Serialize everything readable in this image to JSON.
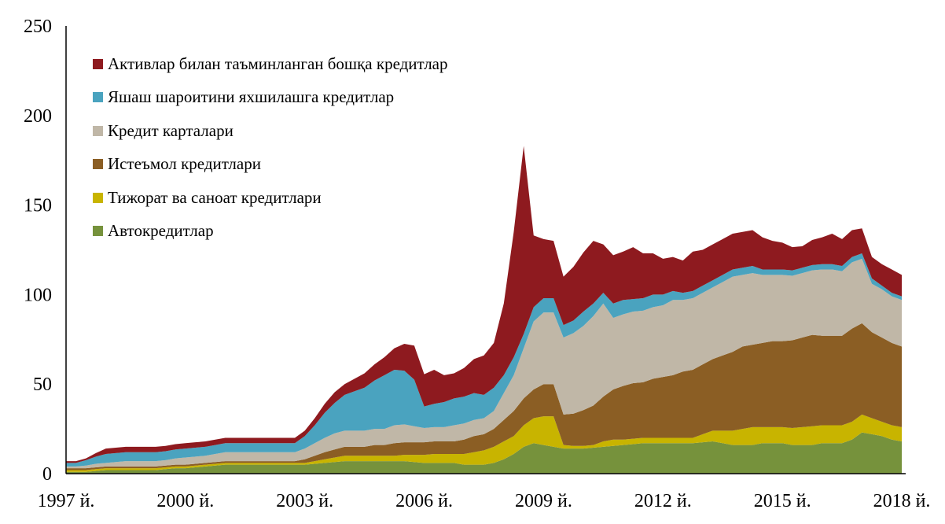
{
  "chart_data": {
    "type": "area",
    "stacked": true,
    "title": "",
    "xlabel": "",
    "ylabel": "",
    "ylim": [
      0,
      250
    ],
    "yticks": [
      0,
      50,
      100,
      150,
      200,
      250
    ],
    "xlim": [
      1997,
      2018
    ],
    "xticks": [
      {
        "value": 1997,
        "label": "1997 й."
      },
      {
        "value": 2000,
        "label": "2000 й."
      },
      {
        "value": 2003,
        "label": "2003 й."
      },
      {
        "value": 2006,
        "label": "2006 й."
      },
      {
        "value": 2009,
        "label": "2009 й."
      },
      {
        "value": 2012,
        "label": "2012 й."
      },
      {
        "value": 2015,
        "label": "2015 й."
      },
      {
        "value": 2018,
        "label": "2018 й."
      }
    ],
    "grid": false,
    "legend_position": "top-left",
    "x": [
      1997.0,
      1997.25,
      1997.5,
      1997.75,
      1998.0,
      1998.25,
      1998.5,
      1998.75,
      1999.0,
      1999.25,
      1999.5,
      1999.75,
      2000.0,
      2000.25,
      2000.5,
      2000.75,
      2001.0,
      2001.25,
      2001.5,
      2001.75,
      2002.0,
      2002.25,
      2002.5,
      2002.75,
      2003.0,
      2003.25,
      2003.5,
      2003.75,
      2004.0,
      2004.25,
      2004.5,
      2004.75,
      2005.0,
      2005.25,
      2005.5,
      2005.75,
      2006.0,
      2006.25,
      2006.5,
      2006.75,
      2007.0,
      2007.25,
      2007.5,
      2007.75,
      2008.0,
      2008.25,
      2008.5,
      2008.75,
      2009.0,
      2009.25,
      2009.5,
      2009.75,
      2010.0,
      2010.25,
      2010.5,
      2010.75,
      2011.0,
      2011.25,
      2011.5,
      2011.75,
      2012.0,
      2012.25,
      2012.5,
      2012.75,
      2013.0,
      2013.25,
      2013.5,
      2013.75,
      2014.0,
      2014.25,
      2014.5,
      2014.75,
      2015.0,
      2015.25,
      2015.5,
      2015.75,
      2016.0,
      2016.25,
      2016.5,
      2016.75,
      2017.0,
      2017.25,
      2017.5,
      2017.75,
      2018.0
    ],
    "series": [
      {
        "name": "Автокредитлар",
        "color": "#76923c",
        "values": [
          1,
          1,
          1,
          1.5,
          2,
          2,
          2,
          2,
          2,
          2,
          2.5,
          3,
          3,
          3.5,
          4,
          4.5,
          5,
          5,
          5,
          5,
          5,
          5,
          5,
          5,
          5,
          5.5,
          6,
          6.5,
          7,
          7,
          7,
          7,
          7,
          7,
          7,
          6.5,
          6,
          6,
          6,
          6,
          5,
          5,
          5,
          6,
          8,
          11,
          15,
          17,
          16,
          15,
          14,
          14,
          14,
          14.5,
          15,
          15.5,
          16,
          16.5,
          17,
          17,
          17,
          17,
          17,
          17,
          17.5,
          18,
          17,
          16,
          16,
          16,
          17,
          17,
          17,
          16,
          16,
          16,
          17,
          17,
          17,
          19,
          23,
          22,
          21,
          19,
          18
        ]
      },
      {
        "name": "Тижорат ва саноат кредитлари",
        "color": "#c8b400",
        "values": [
          1,
          1,
          1,
          1,
          1,
          1,
          1,
          1,
          1,
          1,
          1,
          1,
          1,
          1,
          1,
          1,
          1,
          1,
          1,
          1,
          1,
          1,
          1,
          1,
          1,
          1.5,
          2,
          2.5,
          3,
          3,
          3,
          3,
          3,
          3,
          3.5,
          4,
          4.5,
          5,
          5,
          5,
          6,
          7,
          8,
          9,
          10,
          10,
          12,
          14,
          16,
          17,
          2,
          1.5,
          1.5,
          1.5,
          3,
          3.5,
          3,
          3,
          3,
          3,
          3,
          3,
          3,
          3,
          4.5,
          6,
          7,
          8,
          9,
          10,
          9,
          9,
          9,
          9.5,
          10,
          10.5,
          10,
          10,
          10,
          10,
          10,
          9,
          8,
          8,
          8
        ]
      },
      {
        "name": "Истеъмол кредитлари",
        "color": "#8b5e24",
        "values": [
          1,
          1,
          1,
          1,
          1,
          1,
          1,
          1,
          1,
          1,
          1,
          1,
          1,
          1,
          1,
          1,
          1,
          1,
          1,
          1,
          1,
          1,
          1,
          1,
          2,
          3,
          4,
          4.5,
          5,
          5,
          5,
          6,
          6,
          7,
          7,
          7,
          7,
          7,
          7,
          7,
          8,
          9,
          9,
          10,
          12,
          14,
          15,
          16,
          18,
          18,
          17,
          18,
          20,
          22,
          25,
          28,
          30,
          31,
          31,
          33,
          34,
          35,
          37,
          38,
          39,
          40,
          42,
          44,
          46,
          46,
          47,
          48,
          48,
          49,
          50,
          51,
          50,
          50,
          50,
          52,
          51,
          48,
          47,
          46,
          45
        ]
      },
      {
        "name": "Кредит карталари",
        "color": "#c0b7a7",
        "values": [
          1,
          1,
          1.5,
          2,
          2,
          2.5,
          3,
          3,
          3,
          3,
          3,
          3.5,
          4,
          4,
          4,
          4.5,
          5,
          5,
          5,
          5,
          5,
          5,
          5,
          5,
          6,
          7,
          8,
          9,
          9,
          9,
          9,
          9,
          9,
          10,
          10,
          9,
          8,
          8,
          8,
          9,
          9,
          9,
          9,
          10,
          15,
          20,
          28,
          38,
          40,
          40,
          43,
          45,
          47,
          50,
          52,
          40,
          40,
          40,
          40,
          40,
          40,
          42,
          40,
          40,
          40,
          40,
          41,
          42,
          40,
          40,
          38,
          37,
          37,
          36,
          36,
          36,
          37,
          37,
          36,
          37,
          36,
          27,
          27,
          26,
          26
        ]
      },
      {
        "name": "Яшаш шароитини яхшилашга кредитлар",
        "color": "#4aa3bf",
        "values": [
          2,
          2,
          3,
          4,
          5,
          5,
          5,
          5,
          5,
          5,
          5,
          5,
          5,
          5,
          5,
          5,
          5,
          5,
          5,
          5,
          5,
          5,
          5,
          5,
          7,
          10,
          14,
          17,
          20,
          22,
          24,
          27,
          30,
          31,
          30,
          26,
          12,
          13,
          14,
          15,
          15,
          15,
          13,
          13,
          10,
          10,
          8,
          8,
          8,
          8,
          7,
          7,
          8,
          7,
          6,
          8,
          8,
          7,
          7,
          7,
          6,
          5,
          4,
          4,
          4,
          4,
          4,
          4,
          4,
          4,
          3,
          3,
          3,
          3,
          3,
          3,
          3,
          3,
          3,
          3,
          3,
          3,
          2,
          2,
          2
        ]
      },
      {
        "name": "Активлар билан таъминланган бошқа кредитлар",
        "color": "#8e1a1f",
        "values": [
          1,
          1,
          1,
          2,
          3,
          3,
          3,
          3,
          3,
          3,
          3,
          3,
          3,
          3,
          3,
          3,
          3,
          3,
          3,
          3,
          3,
          3,
          3,
          3,
          3,
          4,
          5,
          6,
          6,
          7,
          8,
          9,
          10,
          12,
          15,
          19,
          18,
          19,
          15,
          14,
          16,
          19,
          22,
          25,
          40,
          70,
          105,
          40,
          33,
          32,
          27,
          30,
          33,
          35,
          27,
          27,
          27,
          29,
          25,
          23,
          20,
          19,
          18,
          22,
          20,
          20,
          20,
          20,
          20,
          20,
          18,
          16,
          15,
          13,
          12,
          14,
          15,
          17,
          15,
          15,
          14,
          12,
          12,
          13,
          12
        ]
      }
    ]
  }
}
